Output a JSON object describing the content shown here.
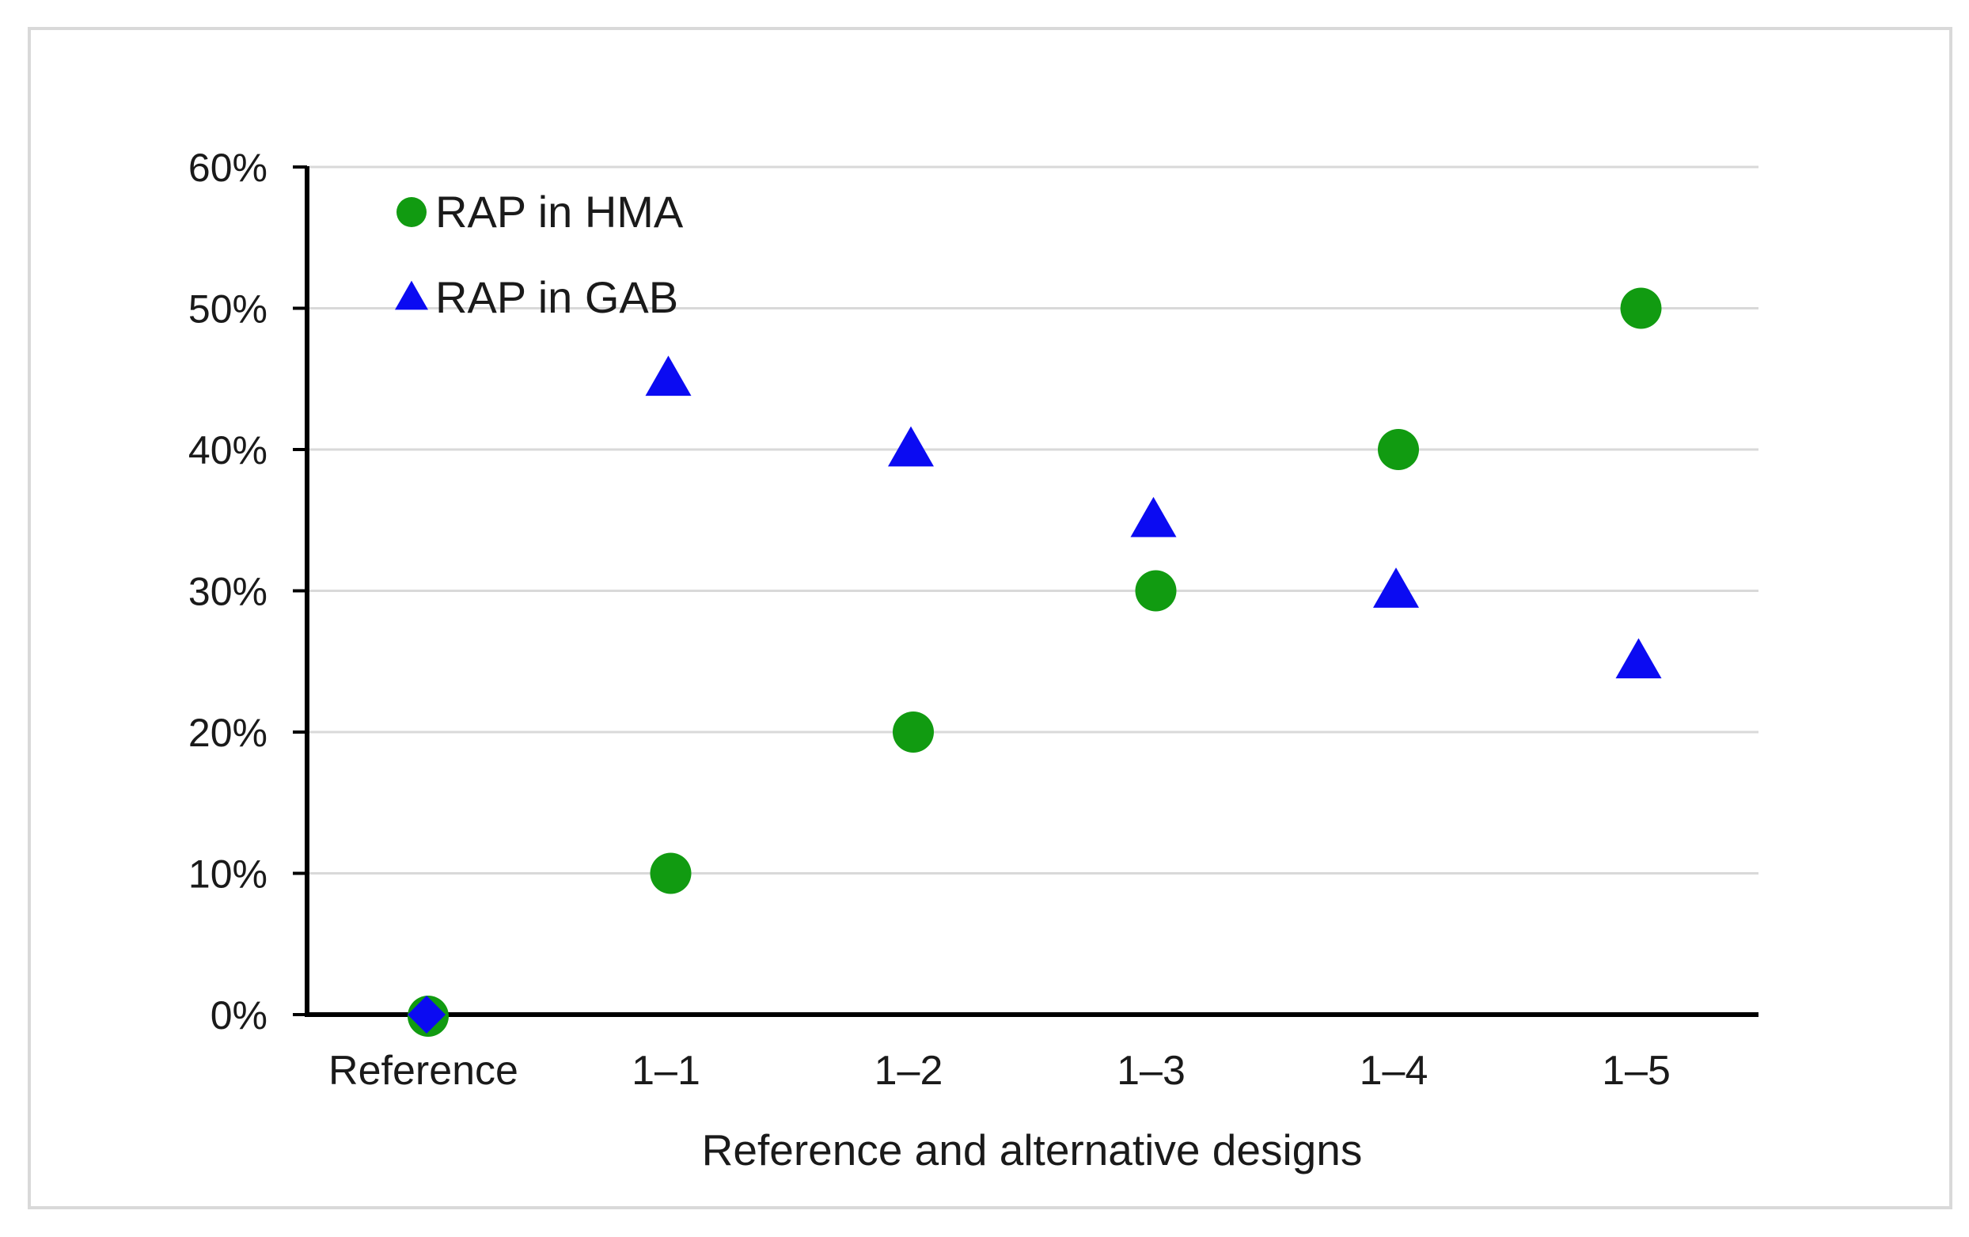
{
  "chart_data": {
    "type": "scatter",
    "title": "",
    "xlabel": "Reference and alternative designs",
    "ylabel": "",
    "categories": [
      "Reference",
      "1–1",
      "1–2",
      "1–3",
      "1–4",
      "1–5"
    ],
    "ylim": [
      0,
      60
    ],
    "yticks": [
      0,
      10,
      20,
      30,
      40,
      50,
      60
    ],
    "ytick_labels": [
      "0%",
      "10%",
      "20%",
      "30%",
      "40%",
      "50%",
      "60%"
    ],
    "grid": "horizontal",
    "legend_position": "top-left",
    "series": [
      {
        "name": "RAP in HMA",
        "marker": "circle",
        "color": "#119b11",
        "values": [
          0,
          10,
          20,
          30,
          40,
          50
        ]
      },
      {
        "name": "RAP in GAB",
        "marker": "triangle",
        "color": "#0b0bf2",
        "values": [
          0,
          45,
          40,
          35,
          30,
          25
        ]
      }
    ],
    "colors": {
      "grid": "#d9d9d9",
      "axis": "#000000",
      "frame": "#d9d9d9"
    }
  }
}
